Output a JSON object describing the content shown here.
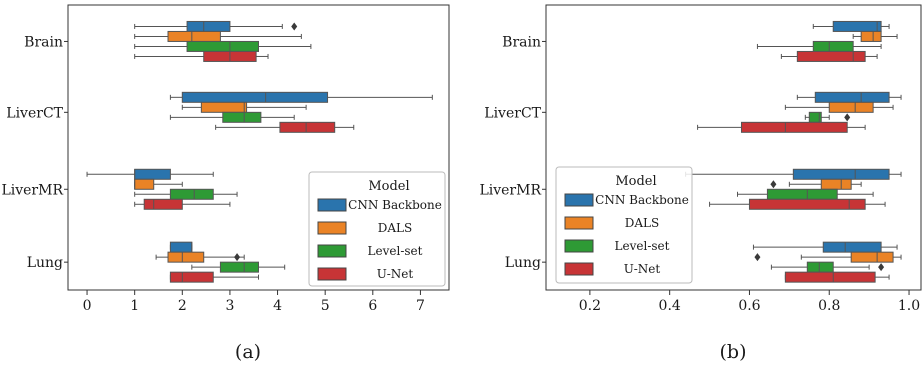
{
  "figure": {
    "captions": [
      "(a)",
      "(b)"
    ]
  },
  "legend": {
    "title": "Model",
    "entries": [
      "CNN Backbone",
      "DALS",
      "Level-set",
      "U-Net"
    ]
  },
  "colors": {
    "CNN Backbone": "#2a74ad",
    "DALS": "#ea8326",
    "Level-set": "#2e9a35",
    "U-Net": "#c73436",
    "whisker": "#555555",
    "frame": "#333333"
  },
  "chart_data": [
    {
      "type": "box",
      "caption": "(a)",
      "orientation": "horizontal",
      "categories": [
        "Brain",
        "LiverCT",
        "LiverMR",
        "Lung"
      ],
      "hue_order": [
        "CNN Backbone",
        "DALS",
        "Level-set",
        "U-Net"
      ],
      "xlim": [
        -0.4,
        7.6
      ],
      "xticks": [
        0,
        1,
        2,
        3,
        4,
        5,
        6,
        7
      ],
      "legend": {
        "title": "Model",
        "position": "lower-right"
      },
      "boxes": {
        "Brain": [
          {
            "model": "CNN Backbone",
            "whislo": 1.0,
            "q1": 2.1,
            "median": 2.45,
            "q3": 3.0,
            "whishi": 4.1,
            "fliers": [
              4.35
            ]
          },
          {
            "model": "DALS",
            "whislo": 1.0,
            "q1": 1.7,
            "median": 2.2,
            "q3": 2.8,
            "whishi": 4.5,
            "fliers": []
          },
          {
            "model": "Level-set",
            "whislo": 1.0,
            "q1": 2.1,
            "median": 3.0,
            "q3": 3.6,
            "whishi": 4.7,
            "fliers": []
          },
          {
            "model": "U-Net",
            "whislo": 1.0,
            "q1": 2.45,
            "median": 3.0,
            "q3": 3.55,
            "whishi": 3.8,
            "fliers": []
          }
        ],
        "LiverCT": [
          {
            "model": "CNN Backbone",
            "whislo": 1.75,
            "q1": 2.0,
            "median": 3.75,
            "q3": 5.05,
            "whishi": 7.25,
            "fliers": []
          },
          {
            "model": "DALS",
            "whislo": 2.0,
            "q1": 2.4,
            "median": 3.3,
            "q3": 3.35,
            "whishi": 4.6,
            "fliers": []
          },
          {
            "model": "Level-set",
            "whislo": 1.75,
            "q1": 2.85,
            "median": 3.3,
            "q3": 3.65,
            "whishi": 4.35,
            "fliers": []
          },
          {
            "model": "U-Net",
            "whislo": 2.7,
            "q1": 4.05,
            "median": 4.6,
            "q3": 5.2,
            "whishi": 5.6,
            "fliers": []
          }
        ],
        "LiverMR": [
          {
            "model": "CNN Backbone",
            "whislo": 0.0,
            "q1": 1.0,
            "median": 1.0,
            "q3": 1.75,
            "whishi": 2.65,
            "fliers": []
          },
          {
            "model": "DALS",
            "whislo": 1.0,
            "q1": 1.0,
            "median": 1.0,
            "q3": 1.4,
            "whishi": 2.0,
            "fliers": []
          },
          {
            "model": "Level-set",
            "whislo": 1.0,
            "q1": 1.75,
            "median": 2.25,
            "q3": 2.65,
            "whishi": 3.15,
            "fliers": []
          },
          {
            "model": "U-Net",
            "whislo": 1.0,
            "q1": 1.2,
            "median": 1.4,
            "q3": 2.0,
            "whishi": 3.0,
            "fliers": []
          }
        ],
        "Lung": [
          {
            "model": "CNN Backbone",
            "whislo": 1.75,
            "q1": 1.75,
            "median": 2.2,
            "q3": 2.2,
            "whishi": 2.2,
            "fliers": []
          },
          {
            "model": "DALS",
            "whislo": 1.45,
            "q1": 1.7,
            "median": 2.0,
            "q3": 2.45,
            "whishi": 3.3,
            "fliers": [
              3.15
            ]
          },
          {
            "model": "Level-set",
            "whislo": 2.2,
            "q1": 2.8,
            "median": 3.3,
            "q3": 3.6,
            "whishi": 4.15,
            "fliers": []
          },
          {
            "model": "U-Net",
            "whislo": 1.75,
            "q1": 1.75,
            "median": 2.0,
            "q3": 2.65,
            "whishi": 3.6,
            "fliers": []
          }
        ]
      }
    },
    {
      "type": "box",
      "caption": "(b)",
      "orientation": "horizontal",
      "categories": [
        "Brain",
        "LiverCT",
        "LiverMR",
        "Lung"
      ],
      "hue_order": [
        "CNN Backbone",
        "DALS",
        "Level-set",
        "U-Net"
      ],
      "xlim": [
        0.09,
        1.03
      ],
      "xticks": [
        0.2,
        0.4,
        0.6,
        0.8,
        1.0
      ],
      "xticklabels": [
        "0.2",
        "0.4",
        "0.6",
        "0.8",
        "1.0"
      ],
      "legend": {
        "title": "Model",
        "position": "lower-left"
      },
      "boxes": {
        "Brain": [
          {
            "model": "CNN Backbone",
            "whislo": 0.76,
            "q1": 0.81,
            "median": 0.92,
            "q3": 0.93,
            "whishi": 0.95,
            "fliers": []
          },
          {
            "model": "DALS",
            "whislo": 0.86,
            "q1": 0.88,
            "median": 0.91,
            "q3": 0.93,
            "whishi": 0.97,
            "fliers": []
          },
          {
            "model": "Level-set",
            "whislo": 0.62,
            "q1": 0.76,
            "median": 0.8,
            "q3": 0.86,
            "whishi": 0.93,
            "fliers": []
          },
          {
            "model": "U-Net",
            "whislo": 0.68,
            "q1": 0.72,
            "median": 0.86,
            "q3": 0.89,
            "whishi": 0.92,
            "fliers": []
          }
        ],
        "LiverCT": [
          {
            "model": "CNN Backbone",
            "whislo": 0.72,
            "q1": 0.765,
            "median": 0.88,
            "q3": 0.95,
            "whishi": 0.98,
            "fliers": []
          },
          {
            "model": "DALS",
            "whislo": 0.69,
            "q1": 0.8,
            "median": 0.865,
            "q3": 0.91,
            "whishi": 0.96,
            "fliers": []
          },
          {
            "model": "Level-set",
            "whislo": 0.74,
            "q1": 0.75,
            "median": 0.775,
            "q3": 0.78,
            "whishi": 0.8,
            "fliers": [
              0.845
            ]
          },
          {
            "model": "U-Net",
            "whislo": 0.47,
            "q1": 0.58,
            "median": 0.69,
            "q3": 0.845,
            "whishi": 0.89,
            "fliers": []
          }
        ],
        "LiverMR": [
          {
            "model": "CNN Backbone",
            "whislo": 0.44,
            "q1": 0.71,
            "median": 0.865,
            "q3": 0.95,
            "whishi": 0.98,
            "fliers": []
          },
          {
            "model": "DALS",
            "whislo": 0.7,
            "q1": 0.78,
            "median": 0.83,
            "q3": 0.855,
            "whishi": 0.88,
            "fliers": [
              0.66
            ]
          },
          {
            "model": "Level-set",
            "whislo": 0.57,
            "q1": 0.645,
            "median": 0.745,
            "q3": 0.82,
            "whishi": 0.91,
            "fliers": []
          },
          {
            "model": "U-Net",
            "whislo": 0.5,
            "q1": 0.6,
            "median": 0.85,
            "q3": 0.89,
            "whishi": 0.94,
            "fliers": []
          }
        ],
        "Lung": [
          {
            "model": "CNN Backbone",
            "whislo": 0.61,
            "q1": 0.785,
            "median": 0.84,
            "q3": 0.93,
            "whishi": 0.97,
            "fliers": []
          },
          {
            "model": "DALS",
            "whislo": 0.73,
            "q1": 0.855,
            "median": 0.92,
            "q3": 0.96,
            "whishi": 0.98,
            "fliers": [
              0.62
            ]
          },
          {
            "model": "Level-set",
            "whislo": 0.655,
            "q1": 0.745,
            "median": 0.775,
            "q3": 0.81,
            "whishi": 0.9,
            "fliers": [
              0.93
            ]
          },
          {
            "model": "U-Net",
            "whislo": 0.69,
            "q1": 0.69,
            "median": 0.81,
            "q3": 0.915,
            "whishi": 0.95,
            "fliers": []
          }
        ]
      }
    }
  ]
}
